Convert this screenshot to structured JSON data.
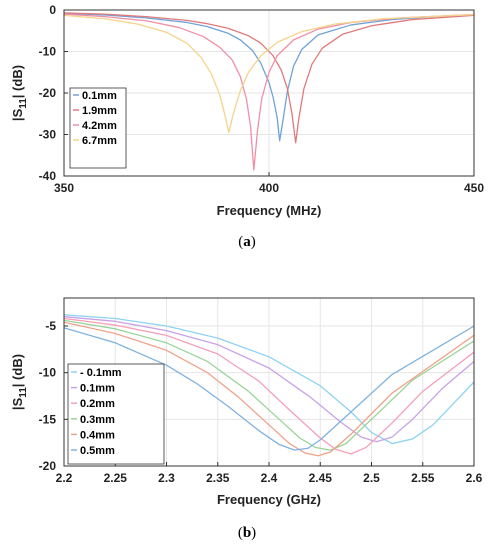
{
  "chart_data": [
    {
      "type": "line",
      "panel_label": "a",
      "xlabel": "Frequency (MHz)",
      "ylabel_prefix": "|S",
      "ylabel_sub": "11",
      "ylabel_suffix": "| (dB)",
      "xlim": [
        350,
        450
      ],
      "ylim": [
        -40,
        0
      ],
      "xticks": [
        "350",
        "400",
        "450"
      ],
      "yticks": [
        "0",
        "-10",
        "-20",
        "-30",
        "-40"
      ],
      "grid": true,
      "legend_position": "lower-left",
      "series": [
        {
          "name": "0.1mm",
          "color": "#6fa3d8",
          "values": [
            [
              350,
              -0.8
            ],
            [
              360,
              -1.2
            ],
            [
              370,
              -1.9
            ],
            [
              380,
              -3.0
            ],
            [
              385,
              -4.0
            ],
            [
              390,
              -5.6
            ],
            [
              393,
              -7.2
            ],
            [
              396,
              -9.8
            ],
            [
              398,
              -12.8
            ],
            [
              400,
              -17.5
            ],
            [
              401,
              -21.0
            ],
            [
              402,
              -26.0
            ],
            [
              402.6,
              -31.5
            ],
            [
              403.5,
              -26.0
            ],
            [
              404.5,
              -19.5
            ],
            [
              406,
              -13.5
            ],
            [
              408,
              -9.5
            ],
            [
              412,
              -6.0
            ],
            [
              420,
              -3.6
            ],
            [
              430,
              -2.3
            ],
            [
              440,
              -1.6
            ],
            [
              450,
              -1.1
            ]
          ]
        },
        {
          "name": "1.9mm",
          "color": "#e07a7a",
          "values": [
            [
              350,
              -0.7
            ],
            [
              360,
              -1.0
            ],
            [
              370,
              -1.6
            ],
            [
              380,
              -2.5
            ],
            [
              385,
              -3.3
            ],
            [
              390,
              -4.4
            ],
            [
              395,
              -6.2
            ],
            [
              398,
              -8.0
            ],
            [
              401,
              -11.0
            ],
            [
              403,
              -14.5
            ],
            [
              404.5,
              -19.0
            ],
            [
              405.6,
              -25.0
            ],
            [
              406.5,
              -32.0
            ],
            [
              407.3,
              -26.0
            ],
            [
              408.5,
              -19.0
            ],
            [
              410.5,
              -13.0
            ],
            [
              413,
              -9.2
            ],
            [
              418,
              -5.8
            ],
            [
              425,
              -3.8
            ],
            [
              435,
              -2.3
            ],
            [
              450,
              -1.3
            ]
          ]
        },
        {
          "name": "4.2mm",
          "color": "#f08fa6",
          "values": [
            [
              350,
              -1.0
            ],
            [
              360,
              -1.6
            ],
            [
              370,
              -2.6
            ],
            [
              378,
              -4.2
            ],
            [
              384,
              -6.4
            ],
            [
              388,
              -9.0
            ],
            [
              391,
              -12.0
            ],
            [
              393,
              -16.0
            ],
            [
              394.5,
              -21.5
            ],
            [
              395.5,
              -28.0
            ],
            [
              396.3,
              -38.5
            ],
            [
              397.2,
              -29.0
            ],
            [
              398.2,
              -21.5
            ],
            [
              400,
              -15.0
            ],
            [
              402,
              -11.0
            ],
            [
              406,
              -7.2
            ],
            [
              412,
              -4.6
            ],
            [
              420,
              -3.0
            ],
            [
              432,
              -1.9
            ],
            [
              450,
              -1.1
            ]
          ]
        },
        {
          "name": "6.7mm",
          "color": "#f4d48a",
          "values": [
            [
              350,
              -1.3
            ],
            [
              360,
              -2.1
            ],
            [
              368,
              -3.4
            ],
            [
              375,
              -5.4
            ],
            [
              380,
              -8.0
            ],
            [
              383.5,
              -11.5
            ],
            [
              386,
              -15.5
            ],
            [
              388,
              -20.5
            ],
            [
              389.3,
              -25.5
            ],
            [
              390.2,
              -29.5
            ],
            [
              391.3,
              -25.0
            ],
            [
              393,
              -19.5
            ],
            [
              395,
              -15.0
            ],
            [
              398,
              -11.0
            ],
            [
              402,
              -7.8
            ],
            [
              408,
              -5.2
            ],
            [
              416,
              -3.4
            ],
            [
              428,
              -2.1
            ],
            [
              450,
              -1.1
            ]
          ]
        }
      ]
    },
    {
      "type": "line",
      "panel_label": "b",
      "xlabel": "Frequency (GHz)",
      "ylabel_prefix": "|S",
      "ylabel_sub": "11",
      "ylabel_suffix": "| (dB)",
      "xlim": [
        2.2,
        2.6
      ],
      "ylim": [
        -20,
        -2
      ],
      "xticks": [
        "2.2",
        "2.25",
        "2.3",
        "2.35",
        "2.4",
        "2.45",
        "2.5",
        "2.55",
        "2.6"
      ],
      "yticks": [
        "-5",
        "-10",
        "-15",
        "-20"
      ],
      "grid": true,
      "legend_position": "lower-left",
      "series": [
        {
          "name": "- 0.1mm",
          "color": "#8fd3f0",
          "values": [
            [
              2.2,
              -3.8
            ],
            [
              2.25,
              -4.2
            ],
            [
              2.3,
              -5.0
            ],
            [
              2.35,
              -6.3
            ],
            [
              2.4,
              -8.3
            ],
            [
              2.45,
              -11.4
            ],
            [
              2.48,
              -14.2
            ],
            [
              2.5,
              -16.4
            ],
            [
              2.52,
              -17.6
            ],
            [
              2.54,
              -17.1
            ],
            [
              2.56,
              -15.6
            ],
            [
              2.58,
              -13.3
            ],
            [
              2.6,
              -11.0
            ]
          ]
        },
        {
          "name": "0.1mm",
          "color": "#c8a2e8",
          "values": [
            [
              2.2,
              -4.0
            ],
            [
              2.25,
              -4.5
            ],
            [
              2.3,
              -5.5
            ],
            [
              2.35,
              -7.0
            ],
            [
              2.4,
              -9.5
            ],
            [
              2.44,
              -12.6
            ],
            [
              2.47,
              -15.3
            ],
            [
              2.49,
              -16.9
            ],
            [
              2.505,
              -17.4
            ],
            [
              2.52,
              -16.9
            ],
            [
              2.54,
              -15.0
            ],
            [
              2.57,
              -11.6
            ],
            [
              2.6,
              -8.8
            ]
          ]
        },
        {
          "name": "0.2mm",
          "color": "#f5a0b8",
          "values": [
            [
              2.2,
              -4.2
            ],
            [
              2.25,
              -4.9
            ],
            [
              2.3,
              -6.0
            ],
            [
              2.35,
              -8.0
            ],
            [
              2.39,
              -10.9
            ],
            [
              2.42,
              -14.0
            ],
            [
              2.45,
              -17.0
            ],
            [
              2.465,
              -18.2
            ],
            [
              2.48,
              -18.7
            ],
            [
              2.495,
              -18.0
            ],
            [
              2.52,
              -15.4
            ],
            [
              2.55,
              -12.0
            ],
            [
              2.6,
              -7.8
            ]
          ]
        },
        {
          "name": "0.3mm",
          "color": "#9ad49a",
          "values": [
            [
              2.2,
              -4.4
            ],
            [
              2.25,
              -5.3
            ],
            [
              2.3,
              -6.8
            ],
            [
              2.34,
              -8.8
            ],
            [
              2.38,
              -12.0
            ],
            [
              2.41,
              -15.0
            ],
            [
              2.43,
              -17.0
            ],
            [
              2.445,
              -18.0
            ],
            [
              2.46,
              -18.3
            ],
            [
              2.475,
              -17.6
            ],
            [
              2.5,
              -15.0
            ],
            [
              2.54,
              -10.8
            ],
            [
              2.6,
              -6.6
            ]
          ]
        },
        {
          "name": "0.4mm",
          "color": "#f0a38a",
          "values": [
            [
              2.2,
              -4.6
            ],
            [
              2.25,
              -5.8
            ],
            [
              2.3,
              -7.6
            ],
            [
              2.34,
              -10.0
            ],
            [
              2.37,
              -12.6
            ],
            [
              2.4,
              -15.6
            ],
            [
              2.42,
              -17.6
            ],
            [
              2.435,
              -18.6
            ],
            [
              2.448,
              -18.9
            ],
            [
              2.46,
              -18.5
            ],
            [
              2.48,
              -16.6
            ],
            [
              2.52,
              -12.2
            ],
            [
              2.6,
              -6.0
            ]
          ]
        },
        {
          "name": "0.5mm",
          "color": "#7fb2e0",
          "values": [
            [
              2.2,
              -5.2
            ],
            [
              2.25,
              -6.8
            ],
            [
              2.3,
              -9.2
            ],
            [
              2.33,
              -11.2
            ],
            [
              2.36,
              -13.6
            ],
            [
              2.39,
              -16.2
            ],
            [
              2.41,
              -17.7
            ],
            [
              2.425,
              -18.3
            ],
            [
              2.438,
              -18.1
            ],
            [
              2.45,
              -17.2
            ],
            [
              2.48,
              -14.2
            ],
            [
              2.52,
              -10.2
            ],
            [
              2.6,
              -5.0
            ]
          ]
        }
      ]
    }
  ]
}
